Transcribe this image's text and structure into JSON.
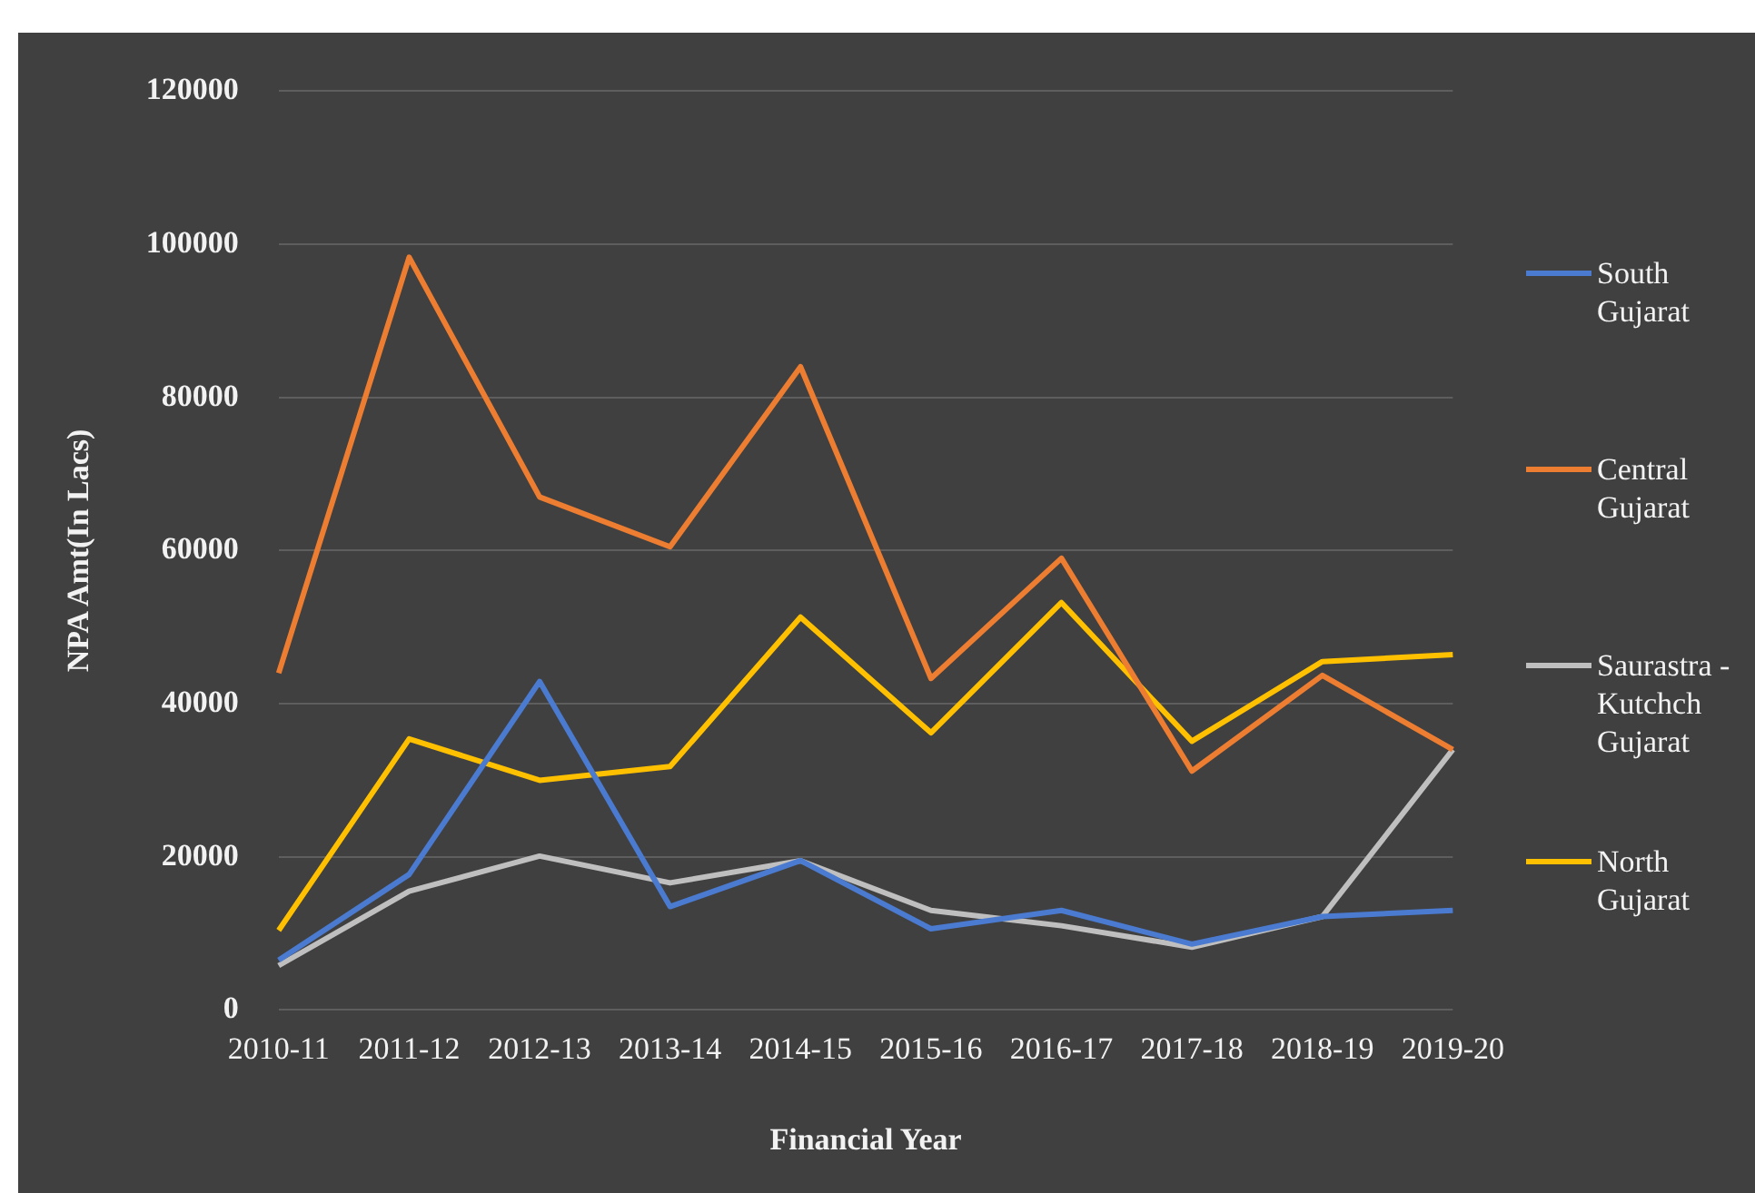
{
  "chart_data": {
    "type": "line",
    "xlabel": "Financial Year",
    "ylabel": "NPA Amt(In Lacs)",
    "categories": [
      "2010-11",
      "2011-12",
      "2012-13",
      "2013-14",
      "2014-15",
      "2015-16",
      "2016-17",
      "2017-18",
      "2018-19",
      "2019-20"
    ],
    "series": [
      {
        "name": "South Gujarat",
        "color": "#4a7bd0",
        "values": [
          6500,
          17700,
          42900,
          13500,
          19500,
          10600,
          13000,
          8600,
          12200,
          13000
        ]
      },
      {
        "name": "Central Gujarat",
        "color": "#ed7d31",
        "values": [
          44000,
          98300,
          67000,
          60500,
          84000,
          43300,
          59000,
          31200,
          43700,
          34000
        ]
      },
      {
        "name": "Saurastra -Kutchch Gujarat",
        "color": "#bfbfbf",
        "values": [
          5800,
          15500,
          20100,
          16600,
          19500,
          13000,
          11000,
          8200,
          12200,
          34000
        ]
      },
      {
        "name": "North Gujarat",
        "color": "#ffc000",
        "values": [
          10400,
          35400,
          30000,
          31800,
          51300,
          36200,
          53200,
          35100,
          45500,
          46400
        ]
      }
    ],
    "ylim": [
      0,
      120000
    ],
    "yticks": [
      0,
      20000,
      40000,
      60000,
      80000,
      100000,
      120000
    ],
    "grid": "y",
    "legend": "right",
    "marker": "none",
    "line_style": "solid"
  }
}
